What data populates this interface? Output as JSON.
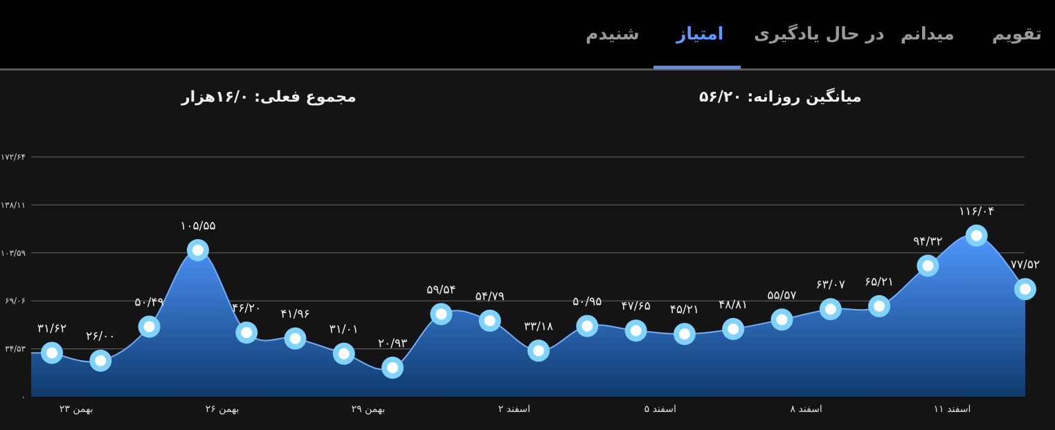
{
  "tabs": [
    {
      "label": "تقویم",
      "active": false
    },
    {
      "label": "میدانم",
      "active": false
    },
    {
      "label": "در حال یادگیری",
      "active": false
    },
    {
      "label": "امتیاز",
      "active": true
    },
    {
      "label": "شنیدم",
      "active": false
    }
  ],
  "summary": {
    "daily_average": "میانگین روزانه: ۵۶/۲۰",
    "current_total": "مجموع فعلی: ۱۶/۰هزار"
  },
  "colors": {
    "accent": "#5f9bff",
    "area_top": "#4f97ff",
    "area_bottom": "#0d3a6b",
    "point_fill": "#ffffff",
    "point_ring": "#7fd4ff"
  },
  "chart_data": {
    "type": "area",
    "x_tick_labels": [
      "۲۳ بهمن",
      "۲۶ بهمن",
      "۲۹ بهمن",
      "۲ اسفند",
      "۵ اسفند",
      "۸ اسفند",
      "۱۱ اسفند"
    ],
    "x_tick_indices": [
      0.5,
      3.5,
      6.5,
      9.5,
      12.5,
      15.5,
      18.5
    ],
    "y_tick_labels": [
      "۰",
      "۳۴/۵۳",
      "۶۹/۰۶",
      "۱۰۳/۵۹",
      "۱۳۸/۱۱",
      "۱۷۲/۶۴"
    ],
    "y_ticks": [
      0,
      34.53,
      69.06,
      103.59,
      138.11,
      172.64
    ],
    "ylim": [
      0,
      172.64
    ],
    "grid": true,
    "values": [
      31.62,
      26.0,
      50.49,
      105.55,
      46.2,
      41.96,
      31.01,
      20.93,
      59.54,
      54.79,
      33.18,
      50.95,
      47.65,
      45.21,
      48.81,
      55.57,
      63.07,
      65.21,
      94.32,
      116.04,
      77.52
    ],
    "labels": [
      "۳۱/۶۲",
      "۲۶/۰۰",
      "۵۰/۴۹",
      "۱۰۵/۵۵",
      "۴۶/۲۰",
      "۴۱/۹۶",
      "۳۱/۰۱",
      "۲۰/۹۳",
      "۵۹/۵۴",
      "۵۴/۷۹",
      "۳۳/۱۸",
      "۵۰/۹۵",
      "۴۷/۶۵",
      "۴۵/۲۱",
      "۴۸/۸۱",
      "۵۵/۵۷",
      "۶۳/۰۷",
      "۶۵/۲۱",
      "۹۴/۳۲",
      "۱۱۶/۰۴",
      "۷۷/۵۲"
    ]
  }
}
